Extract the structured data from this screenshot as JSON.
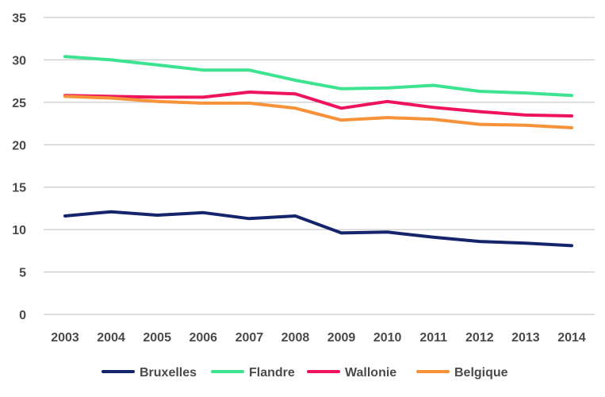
{
  "chart_data": {
    "type": "line",
    "x": [
      "2003",
      "2004",
      "2005",
      "2006",
      "2007",
      "2008",
      "2009",
      "2010",
      "2011",
      "2012",
      "2013",
      "2014"
    ],
    "ylim": [
      0,
      35
    ],
    "yticks": [
      "0",
      "5",
      "10",
      "15",
      "20",
      "25",
      "30",
      "35"
    ],
    "grid": true,
    "legend_position": "bottom",
    "series": [
      {
        "name": "Bruxelles",
        "color": "#14256b",
        "values": [
          11.6,
          12.1,
          11.7,
          12.0,
          11.3,
          11.6,
          9.6,
          9.7,
          9.1,
          8.6,
          8.4,
          8.1
        ]
      },
      {
        "name": "Flandre",
        "color": "#3de38f",
        "values": [
          30.4,
          30.0,
          29.4,
          28.8,
          28.8,
          27.6,
          26.6,
          26.7,
          27.0,
          26.3,
          26.1,
          25.8
        ]
      },
      {
        "name": "Wallonie",
        "color": "#ee145b",
        "values": [
          25.8,
          25.7,
          25.6,
          25.6,
          26.2,
          26.0,
          24.3,
          25.1,
          24.4,
          23.9,
          23.5,
          23.4
        ]
      },
      {
        "name": "Belgique",
        "color": "#f5923a",
        "values": [
          25.7,
          25.5,
          25.1,
          24.9,
          24.9,
          24.3,
          22.9,
          23.2,
          23.0,
          22.4,
          22.3,
          22.0
        ]
      }
    ]
  }
}
